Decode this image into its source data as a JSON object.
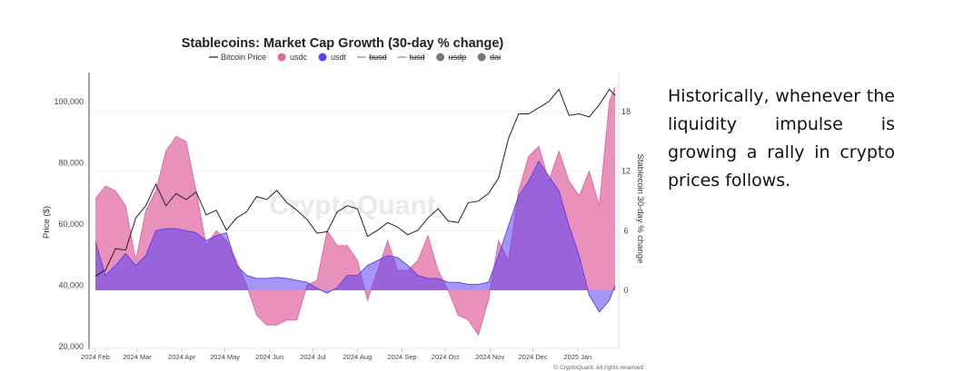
{
  "note": {
    "text": "Historically, whenever the liquidity impulse is growing a rally in crypto prices follows."
  },
  "chart_data": {
    "type": "area",
    "title": "Stablecoins: Market Cap Growth (30-day % change)",
    "watermark": "CryptoQuant",
    "copyright": "© CryptoQuant. All rights reserved",
    "ylabel": "Price ($)",
    "y2label": "Stablecoin 30-day % change",
    "ylim": [
      20000,
      108000
    ],
    "y2lim": [
      -5.5,
      21.5
    ],
    "yticks": [
      "20,000",
      "40,000",
      "60,000",
      "80,000",
      "100,000"
    ],
    "y2ticks": [
      "0",
      "6",
      "12",
      "18"
    ],
    "xticks": [
      {
        "date": "2024-02-01",
        "label": "2024 Feb"
      },
      {
        "date": "2024-03-01",
        "label": "2024 Mar"
      },
      {
        "date": "2024-04-01",
        "label": "2024 Apr"
      },
      {
        "date": "2024-05-01",
        "label": "2024 May"
      },
      {
        "date": "2024-06-01",
        "label": "2024 Jun"
      },
      {
        "date": "2024-07-01",
        "label": "2024 Jul"
      },
      {
        "date": "2024-08-01",
        "label": "2024 Aug"
      },
      {
        "date": "2024-09-01",
        "label": "2024 Sep"
      },
      {
        "date": "2024-10-01",
        "label": "2024 Oct"
      },
      {
        "date": "2024-11-01",
        "label": "2024 Nov"
      },
      {
        "date": "2024-12-01",
        "label": "2024 Dec"
      },
      {
        "date": "2025-01-01",
        "label": "2025 Jan"
      }
    ],
    "legend": [
      {
        "name": "Bitcoin Price",
        "marker": "line",
        "color": "#222222",
        "hidden": false
      },
      {
        "name": "usdc",
        "marker": "dot",
        "color": "#e0679f",
        "hidden": false
      },
      {
        "name": "usdt",
        "marker": "dot",
        "color": "#5a3ff0",
        "hidden": false
      },
      {
        "name": "busd",
        "marker": "line",
        "color": "#888888",
        "hidden": true
      },
      {
        "name": "tusd",
        "marker": "line",
        "color": "#888888",
        "hidden": true
      },
      {
        "name": "usdp",
        "marker": "dot",
        "color": "#777780",
        "hidden": true
      },
      {
        "name": "dai",
        "marker": "dot",
        "color": "#777780",
        "hidden": true
      }
    ],
    "legend_position": "top",
    "x": [
      "2024-02-01",
      "2024-02-08",
      "2024-02-15",
      "2024-02-22",
      "2024-02-29",
      "2024-03-07",
      "2024-03-14",
      "2024-03-21",
      "2024-03-28",
      "2024-04-04",
      "2024-04-11",
      "2024-04-18",
      "2024-04-25",
      "2024-05-02",
      "2024-05-09",
      "2024-05-16",
      "2024-05-23",
      "2024-05-30",
      "2024-06-06",
      "2024-06-13",
      "2024-06-20",
      "2024-06-27",
      "2024-07-04",
      "2024-07-11",
      "2024-07-18",
      "2024-07-25",
      "2024-08-01",
      "2024-08-08",
      "2024-08-15",
      "2024-08-22",
      "2024-08-29",
      "2024-09-05",
      "2024-09-12",
      "2024-09-19",
      "2024-09-26",
      "2024-10-03",
      "2024-10-10",
      "2024-10-17",
      "2024-10-24",
      "2024-10-31",
      "2024-11-07",
      "2024-11-14",
      "2024-11-21",
      "2024-11-28",
      "2024-12-05",
      "2024-12-12",
      "2024-12-19",
      "2024-12-26",
      "2025-01-02",
      "2025-01-09",
      "2025-01-16",
      "2025-01-23",
      "2025-01-27"
    ],
    "series": [
      {
        "name": "Bitcoin Price",
        "axis": "left",
        "color": "#222222",
        "values": [
          43000,
          45000,
          52000,
          51500,
          62000,
          66000,
          73000,
          66000,
          70000,
          68000,
          70500,
          63000,
          64500,
          58000,
          62000,
          64000,
          69000,
          68000,
          71000,
          67000,
          64500,
          61500,
          57000,
          57500,
          64000,
          66000,
          65000,
          56000,
          58000,
          60500,
          59000,
          56500,
          58000,
          62000,
          65000,
          61000,
          60500,
          67000,
          67500,
          70000,
          75000,
          88000,
          96000,
          96000,
          98000,
          100000,
          104000,
          95500,
          96000,
          95000,
          99000,
          104000,
          102000
        ]
      },
      {
        "name": "usdc",
        "axis": "right",
        "color": "#e0679f",
        "values": [
          9.2,
          10.5,
          10,
          8.5,
          3,
          8,
          10,
          14,
          15.5,
          15,
          10,
          4.5,
          6,
          5,
          3,
          0.5,
          -2.5,
          -3.5,
          -3.5,
          -3,
          -3,
          0.5,
          1,
          6,
          4.5,
          4.5,
          3,
          -1,
          2,
          5,
          2,
          2,
          3,
          5.5,
          2,
          0,
          -2.5,
          -3,
          -4.5,
          -1,
          5,
          3,
          10,
          13.5,
          14.5,
          11,
          14,
          11,
          9.5,
          12,
          8.5,
          19,
          20.5
        ]
      },
      {
        "name": "usdt",
        "axis": "right",
        "color": "#5a3ff0",
        "values": [
          4.9,
          1.5,
          2.5,
          3.7,
          2.5,
          3.5,
          6,
          6.2,
          6.2,
          6,
          5.8,
          5,
          5.5,
          5.8,
          2.5,
          1.5,
          1.2,
          1.2,
          1.3,
          1.2,
          1.0,
          0.8,
          0.2,
          -0.3,
          0.3,
          1.5,
          1.5,
          2.5,
          3,
          3.5,
          3.3,
          2.5,
          1.5,
          1.2,
          1.2,
          0.8,
          0.8,
          0.6,
          0.6,
          0.8,
          3.5,
          6.5,
          9.5,
          11,
          13,
          11.5,
          10,
          6.5,
          3.5,
          -0.5,
          -2.2,
          -1,
          0.5
        ]
      }
    ],
    "grid": true
  }
}
